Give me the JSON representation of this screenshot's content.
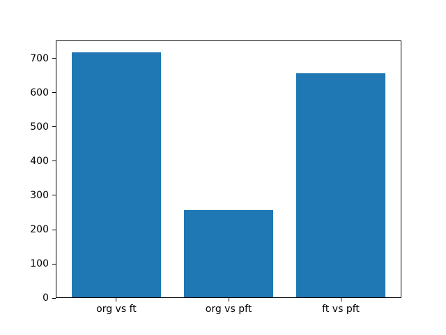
{
  "figure": {
    "background_color": "#ffffff",
    "bar_color": "#1f77b4",
    "axis_color": "#000000",
    "tick_label_color": "#000000"
  },
  "chart_data": {
    "type": "bar",
    "title": "",
    "xlabel": "",
    "ylabel": "",
    "categories": [
      "org vs ft",
      "org vs pft",
      "ft vs pft"
    ],
    "values": [
      717,
      258,
      657
    ],
    "yticks": [
      0,
      100,
      200,
      300,
      400,
      500,
      600,
      700
    ],
    "ylim": [
      0,
      752.85
    ],
    "xlim": [
      -0.54,
      2.54
    ],
    "bar_width_fraction": 0.8,
    "grid": false,
    "legend": null
  }
}
